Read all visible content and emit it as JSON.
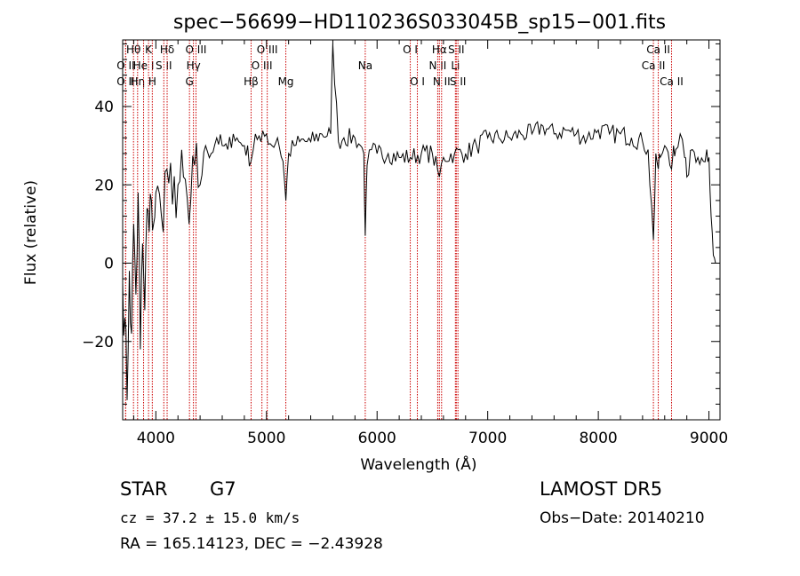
{
  "chart_data": {
    "type": "line",
    "title": "spec−56699−HD110236S033045B_sp15−001.fits",
    "xlabel": "Wavelength (Å)",
    "ylabel": "Flux (relative)",
    "xlim": [
      3700,
      9100
    ],
    "ylim": [
      -40,
      57
    ],
    "xticks": [
      4000,
      5000,
      6000,
      7000,
      8000,
      9000
    ],
    "yticks": [
      -20,
      0,
      20,
      40
    ],
    "grid": false,
    "line_color": "#000000",
    "marker_color": "#cc0000",
    "series": [
      {
        "x": [
          3700,
          3720,
          3740,
          3760,
          3780,
          3800,
          3820,
          3840,
          3860,
          3880,
          3900,
          3920,
          3940,
          3960,
          3980,
          4000,
          4050,
          4100,
          4150,
          4200,
          4250,
          4300,
          4350,
          4400,
          4450,
          4500,
          4550,
          4600,
          4650,
          4700,
          4750,
          4800,
          4860,
          4900,
          4950,
          5000,
          5050,
          5100,
          5150,
          5175,
          5200,
          5250,
          5300,
          5400,
          5500,
          5580,
          5600,
          5650,
          5700,
          5800,
          5850,
          5880,
          5893,
          5910,
          5950,
          6000,
          6100,
          6200,
          6300,
          6400,
          6500,
          6563,
          6600,
          6700,
          6800,
          6900,
          7000,
          7100,
          7200,
          7300,
          7400,
          7500,
          7600,
          7700,
          7800,
          7900,
          8000,
          8100,
          8200,
          8300,
          8400,
          8450,
          8498,
          8520,
          8542,
          8560,
          8600,
          8662,
          8680,
          8700,
          8740,
          8780,
          8800,
          8850,
          8900,
          8950,
          8980,
          9000,
          9020,
          9040,
          9060
        ],
        "values": [
          -5,
          -14,
          -35,
          -2,
          -18,
          10,
          -8,
          18,
          -22,
          5,
          -12,
          14,
          8,
          16,
          10,
          18,
          12,
          24,
          15,
          20,
          22,
          10,
          25,
          20,
          30,
          28,
          32,
          30,
          29,
          33,
          31,
          30,
          26,
          33,
          31,
          33,
          30,
          32,
          26,
          16,
          28,
          30,
          31,
          31,
          33,
          33,
          56,
          31,
          32,
          32,
          30,
          28,
          7,
          25,
          29,
          28,
          28,
          27,
          27,
          28,
          28,
          22,
          27,
          28,
          28,
          30,
          32,
          32,
          32,
          33,
          33,
          35,
          33,
          34,
          33,
          32,
          34,
          33,
          33,
          32,
          31,
          29,
          6,
          28,
          24,
          27,
          30,
          24,
          30,
          29,
          33,
          27,
          22,
          29,
          27,
          26,
          29,
          27,
          12,
          2,
          0
        ]
      }
    ],
    "line_markers": [
      {
        "name": "O II",
        "x": 3727,
        "row": 2
      },
      {
        "name": "Hθ",
        "x": 3798,
        "row": 0
      },
      {
        "name": "O II",
        "x": 3727,
        "row": 1
      },
      {
        "name": "Hη",
        "x": 3835,
        "row": 2
      },
      {
        "name": "He I",
        "x": 3889,
        "row": 1
      },
      {
        "name": "K",
        "x": 3934,
        "row": 0
      },
      {
        "name": "H",
        "x": 3968,
        "row": 2
      },
      {
        "name": "S II",
        "x": 4072,
        "row": 1
      },
      {
        "name": "Hδ",
        "x": 4102,
        "row": 0
      },
      {
        "name": "G",
        "x": 4304,
        "row": 2
      },
      {
        "name": "Hγ",
        "x": 4340,
        "row": 1
      },
      {
        "name": "O III",
        "x": 4363,
        "row": 0
      },
      {
        "name": "Hβ",
        "x": 4861,
        "row": 2
      },
      {
        "name": "O III",
        "x": 4959,
        "row": 1
      },
      {
        "name": "O III",
        "x": 5007,
        "row": 0
      },
      {
        "name": "Mg",
        "x": 5175,
        "row": 2
      },
      {
        "name": "Na",
        "x": 5893,
        "row": 1
      },
      {
        "name": "O I",
        "x": 6300,
        "row": 0
      },
      {
        "name": "O I",
        "x": 6364,
        "row": 2
      },
      {
        "name": "N II",
        "x": 6548,
        "row": 1
      },
      {
        "name": "Hα",
        "x": 6563,
        "row": 0
      },
      {
        "name": "N II",
        "x": 6583,
        "row": 2
      },
      {
        "name": "Li",
        "x": 6708,
        "row": 1
      },
      {
        "name": "S II",
        "x": 6716,
        "row": 0
      },
      {
        "name": "S II",
        "x": 6731,
        "row": 2
      },
      {
        "name": "Ca II",
        "x": 8498,
        "row": 1
      },
      {
        "name": "Ca II",
        "x": 8542,
        "row": 0
      },
      {
        "name": "Ca II",
        "x": 8662,
        "row": 2
      }
    ]
  },
  "info": {
    "class": "STAR",
    "subclass": "G7",
    "survey": "LAMOST DR5",
    "cz": "cz = 37.2 ± 15.0 km/s",
    "obs_date": "Obs−Date: 20140210",
    "radec": "RA = 165.14123, DEC =  −2.43928"
  }
}
